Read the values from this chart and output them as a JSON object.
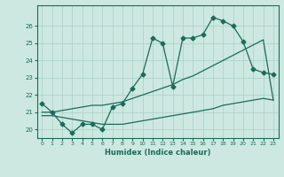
{
  "xlabel": "Humidex (Indice chaleur)",
  "bg_color": "#cce8e0",
  "grid_color": "#aacfc8",
  "line_color": "#1a6b5a",
  "xlim": [
    -0.5,
    23.5
  ],
  "ylim": [
    19.5,
    27.2
  ],
  "yticks": [
    20,
    21,
    22,
    23,
    24,
    25,
    26
  ],
  "xticks": [
    0,
    1,
    2,
    3,
    4,
    5,
    6,
    7,
    8,
    9,
    10,
    11,
    12,
    13,
    14,
    15,
    16,
    17,
    18,
    19,
    20,
    21,
    22,
    23
  ],
  "series1_x": [
    0,
    1,
    2,
    3,
    4,
    5,
    6,
    7,
    8,
    9,
    10,
    11,
    12,
    13,
    14,
    15,
    16,
    17,
    18,
    19,
    20,
    21,
    22,
    23
  ],
  "series1_y": [
    21.5,
    21.0,
    20.3,
    19.8,
    20.3,
    20.3,
    20.0,
    21.3,
    21.5,
    22.4,
    23.2,
    25.3,
    25.0,
    22.5,
    25.3,
    25.3,
    25.5,
    26.5,
    26.3,
    26.0,
    25.1,
    23.5,
    23.3,
    23.2
  ],
  "series2_x": [
    0,
    1,
    2,
    3,
    4,
    5,
    6,
    7,
    8,
    9,
    10,
    11,
    12,
    13,
    14,
    15,
    16,
    17,
    18,
    19,
    20,
    21,
    22,
    23
  ],
  "series2_y": [
    21.0,
    21.0,
    21.1,
    21.2,
    21.3,
    21.4,
    21.4,
    21.5,
    21.6,
    21.8,
    22.0,
    22.2,
    22.4,
    22.6,
    22.9,
    23.1,
    23.4,
    23.7,
    24.0,
    24.3,
    24.6,
    24.9,
    25.2,
    21.7
  ],
  "series3_x": [
    0,
    1,
    2,
    3,
    4,
    5,
    6,
    7,
    8,
    9,
    10,
    11,
    12,
    13,
    14,
    15,
    16,
    17,
    18,
    19,
    20,
    21,
    22,
    23
  ],
  "series3_y": [
    20.8,
    20.8,
    20.7,
    20.6,
    20.5,
    20.4,
    20.3,
    20.3,
    20.3,
    20.4,
    20.5,
    20.6,
    20.7,
    20.8,
    20.9,
    21.0,
    21.1,
    21.2,
    21.4,
    21.5,
    21.6,
    21.7,
    21.8,
    21.7
  ]
}
